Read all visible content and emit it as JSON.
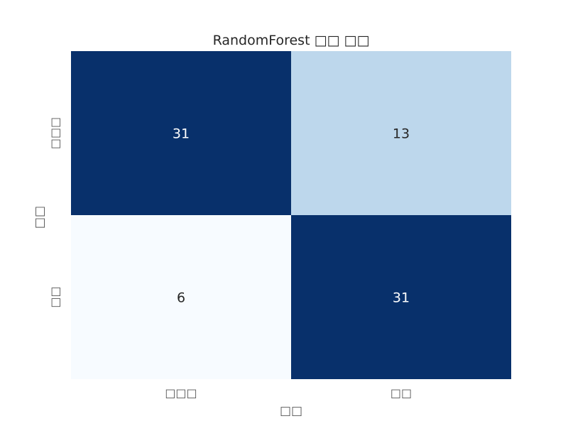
{
  "chart_data": {
    "type": "heatmap",
    "title": "RandomForest □□ □□",
    "xlabel": "□□",
    "ylabel": "□□",
    "x_categories": [
      "□□□",
      "□□"
    ],
    "y_categories": [
      "□□□",
      "□□"
    ],
    "values": [
      [
        31,
        13
      ],
      [
        6,
        31
      ]
    ],
    "colormap": "Blues",
    "colors": {
      "low": "#f7fbff",
      "mid": "#bdd7ec",
      "high": "#08306b"
    },
    "vmin": 6,
    "vmax": 31,
    "colorbar": false,
    "grid": false
  }
}
